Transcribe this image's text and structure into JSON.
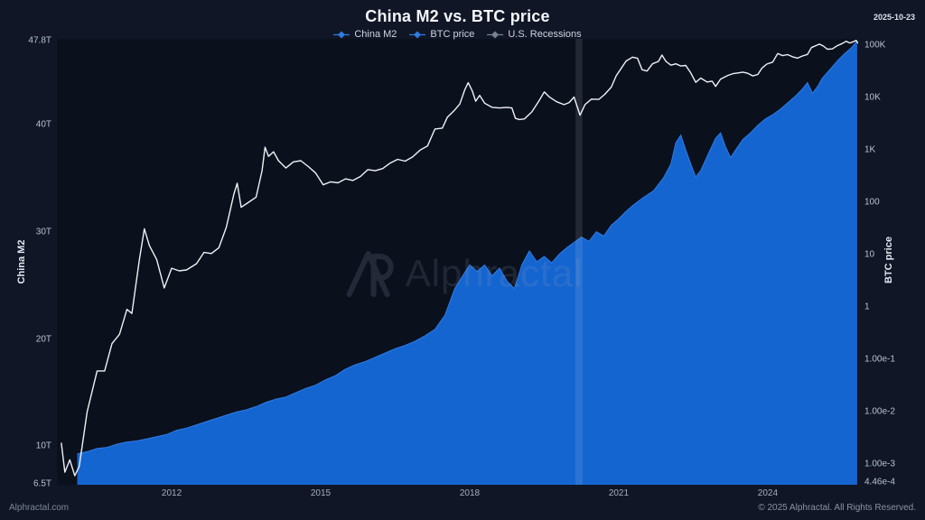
{
  "header": {
    "title": "China M2 vs. BTC price",
    "date": "2025-10-23"
  },
  "legend": [
    {
      "label": "China M2",
      "color": "#2e7ce4",
      "marker": "diamond-line"
    },
    {
      "label": "BTC price",
      "color": "#2e7ce4",
      "marker": "diamond-line"
    },
    {
      "label": "U.S. Recessions",
      "color": "#78818f",
      "marker": "diamond-line"
    }
  ],
  "watermark": {
    "logo": "AP",
    "text": "Alphractal"
  },
  "footer": {
    "left": "Alphractal.com",
    "right": "© 2025 Alphractal. All Rights Reserved."
  },
  "colors": {
    "page_bg": "#101626",
    "plot_bg": "#0b101d",
    "m2_fill": "#1565d0",
    "m2_edge": "#2e7ce4",
    "btc_line": "#eef2f7",
    "recession_band": "rgba(255,255,255,0.10)"
  },
  "chart_data": {
    "type": "area",
    "title": "China M2 vs. BTC price",
    "x_range": [
      2009.69,
      2025.82
    ],
    "x_axis": {
      "ticks": [
        2012,
        2015,
        2018,
        2021,
        2024
      ]
    },
    "left_axis": {
      "label": "China M2",
      "scale": "linear",
      "range": [
        6.5,
        47.8
      ],
      "units": "T",
      "ticks": [
        {
          "label": "6.5T",
          "value": 6.5
        },
        {
          "label": "10T",
          "value": 10
        },
        {
          "label": "20T",
          "value": 20
        },
        {
          "label": "30T",
          "value": 30
        },
        {
          "label": "40T",
          "value": 40
        },
        {
          "label": "47.8T",
          "value": 47.8
        }
      ]
    },
    "right_axis": {
      "label": "BTC price",
      "scale": "log",
      "range": [
        0.000446,
        130000
      ],
      "ticks": [
        {
          "label": "100K",
          "value": 100000
        },
        {
          "label": "10K",
          "value": 10000
        },
        {
          "label": "1K",
          "value": 1000
        },
        {
          "label": "100",
          "value": 100
        },
        {
          "label": "10",
          "value": 10
        },
        {
          "label": "1",
          "value": 1
        },
        {
          "label": "1.00e-1",
          "value": 0.1
        },
        {
          "label": "1.00e-2",
          "value": 0.01
        },
        {
          "label": "1.00e-3",
          "value": 0.001
        },
        {
          "label": "4.46e-4",
          "value": 0.000446
        }
      ]
    },
    "series": [
      {
        "name": "China M2",
        "type": "area",
        "axis": "left",
        "points": [
          [
            2010.1,
            9.3
          ],
          [
            2010.3,
            9.5
          ],
          [
            2010.5,
            9.8
          ],
          [
            2010.7,
            9.9
          ],
          [
            2010.9,
            10.2
          ],
          [
            2011.1,
            10.4
          ],
          [
            2011.3,
            10.5
          ],
          [
            2011.5,
            10.7
          ],
          [
            2011.7,
            10.9
          ],
          [
            2011.9,
            11.1
          ],
          [
            2012.1,
            11.5
          ],
          [
            2012.3,
            11.7
          ],
          [
            2012.5,
            12.0
          ],
          [
            2012.7,
            12.3
          ],
          [
            2012.9,
            12.6
          ],
          [
            2013.1,
            12.9
          ],
          [
            2013.3,
            13.2
          ],
          [
            2013.5,
            13.4
          ],
          [
            2013.7,
            13.7
          ],
          [
            2013.9,
            14.1
          ],
          [
            2014.1,
            14.4
          ],
          [
            2014.3,
            14.6
          ],
          [
            2014.5,
            15.0
          ],
          [
            2014.7,
            15.4
          ],
          [
            2014.9,
            15.7
          ],
          [
            2015.1,
            16.2
          ],
          [
            2015.3,
            16.6
          ],
          [
            2015.5,
            17.2
          ],
          [
            2015.7,
            17.6
          ],
          [
            2015.9,
            17.9
          ],
          [
            2016.1,
            18.3
          ],
          [
            2016.3,
            18.7
          ],
          [
            2016.5,
            19.1
          ],
          [
            2016.7,
            19.4
          ],
          [
            2016.9,
            19.8
          ],
          [
            2017.1,
            20.3
          ],
          [
            2017.3,
            20.9
          ],
          [
            2017.5,
            22.2
          ],
          [
            2017.7,
            24.7
          ],
          [
            2017.9,
            26.2
          ],
          [
            2018.0,
            26.9
          ],
          [
            2018.15,
            26.3
          ],
          [
            2018.3,
            26.9
          ],
          [
            2018.45,
            25.9
          ],
          [
            2018.6,
            26.6
          ],
          [
            2018.75,
            25.4
          ],
          [
            2018.9,
            24.7
          ],
          [
            2019.05,
            26.9
          ],
          [
            2019.2,
            28.2
          ],
          [
            2019.35,
            27.2
          ],
          [
            2019.5,
            27.7
          ],
          [
            2019.65,
            27.1
          ],
          [
            2019.8,
            27.9
          ],
          [
            2019.95,
            28.5
          ],
          [
            2020.1,
            29.0
          ],
          [
            2020.25,
            29.5
          ],
          [
            2020.4,
            29.1
          ],
          [
            2020.55,
            30.0
          ],
          [
            2020.7,
            29.6
          ],
          [
            2020.85,
            30.6
          ],
          [
            2021.0,
            31.2
          ],
          [
            2021.15,
            31.9
          ],
          [
            2021.3,
            32.5
          ],
          [
            2021.5,
            33.2
          ],
          [
            2021.7,
            33.8
          ],
          [
            2021.9,
            35.0
          ],
          [
            2022.05,
            36.3
          ],
          [
            2022.15,
            38.3
          ],
          [
            2022.25,
            39.0
          ],
          [
            2022.35,
            37.6
          ],
          [
            2022.45,
            36.3
          ],
          [
            2022.55,
            35.1
          ],
          [
            2022.65,
            35.7
          ],
          [
            2022.8,
            37.2
          ],
          [
            2022.95,
            38.7
          ],
          [
            2023.05,
            39.2
          ],
          [
            2023.15,
            37.9
          ],
          [
            2023.25,
            36.9
          ],
          [
            2023.35,
            37.6
          ],
          [
            2023.5,
            38.6
          ],
          [
            2023.65,
            39.2
          ],
          [
            2023.8,
            39.9
          ],
          [
            2023.95,
            40.5
          ],
          [
            2024.1,
            40.9
          ],
          [
            2024.25,
            41.4
          ],
          [
            2024.4,
            42.0
          ],
          [
            2024.55,
            42.6
          ],
          [
            2024.7,
            43.3
          ],
          [
            2024.8,
            43.9
          ],
          [
            2024.9,
            42.9
          ],
          [
            2025.0,
            43.5
          ],
          [
            2025.1,
            44.3
          ],
          [
            2025.25,
            45.1
          ],
          [
            2025.4,
            45.9
          ],
          [
            2025.55,
            46.6
          ],
          [
            2025.7,
            47.2
          ],
          [
            2025.8,
            47.8
          ]
        ]
      },
      {
        "name": "BTC price",
        "type": "line",
        "axis": "right",
        "points": [
          [
            2009.78,
            0.0025
          ],
          [
            2009.85,
            0.0007
          ],
          [
            2009.95,
            0.0012
          ],
          [
            2010.05,
            0.0006
          ],
          [
            2010.14,
            0.0009
          ],
          [
            2010.3,
            0.01
          ],
          [
            2010.5,
            0.06
          ],
          [
            2010.65,
            0.06
          ],
          [
            2010.8,
            0.2
          ],
          [
            2010.95,
            0.3
          ],
          [
            2011.1,
            0.9
          ],
          [
            2011.2,
            0.75
          ],
          [
            2011.35,
            8
          ],
          [
            2011.45,
            31
          ],
          [
            2011.55,
            15
          ],
          [
            2011.7,
            8
          ],
          [
            2011.85,
            2.3
          ],
          [
            2012.0,
            5.5
          ],
          [
            2012.15,
            4.9
          ],
          [
            2012.3,
            5.1
          ],
          [
            2012.5,
            6.7
          ],
          [
            2012.65,
            11
          ],
          [
            2012.8,
            10.5
          ],
          [
            2012.95,
            13.5
          ],
          [
            2013.1,
            33
          ],
          [
            2013.25,
            140
          ],
          [
            2013.32,
            230
          ],
          [
            2013.4,
            80
          ],
          [
            2013.55,
            100
          ],
          [
            2013.7,
            125
          ],
          [
            2013.82,
            400
          ],
          [
            2013.88,
            1120
          ],
          [
            2013.95,
            750
          ],
          [
            2014.05,
            920
          ],
          [
            2014.15,
            620
          ],
          [
            2014.3,
            450
          ],
          [
            2014.45,
            590
          ],
          [
            2014.6,
            620
          ],
          [
            2014.75,
            480
          ],
          [
            2014.9,
            360
          ],
          [
            2015.05,
            215
          ],
          [
            2015.2,
            245
          ],
          [
            2015.35,
            235
          ],
          [
            2015.5,
            280
          ],
          [
            2015.65,
            260
          ],
          [
            2015.8,
            310
          ],
          [
            2015.95,
            420
          ],
          [
            2016.1,
            400
          ],
          [
            2016.25,
            440
          ],
          [
            2016.4,
            560
          ],
          [
            2016.55,
            660
          ],
          [
            2016.7,
            610
          ],
          [
            2016.85,
            730
          ],
          [
            2017.0,
            990
          ],
          [
            2017.15,
            1180
          ],
          [
            2017.3,
            2500
          ],
          [
            2017.45,
            2600
          ],
          [
            2017.55,
            4200
          ],
          [
            2017.7,
            5800
          ],
          [
            2017.8,
            7500
          ],
          [
            2017.9,
            14000
          ],
          [
            2017.97,
            19200
          ],
          [
            2018.05,
            13500
          ],
          [
            2018.12,
            8500
          ],
          [
            2018.2,
            11000
          ],
          [
            2018.3,
            7800
          ],
          [
            2018.45,
            6500
          ],
          [
            2018.6,
            6300
          ],
          [
            2018.75,
            6500
          ],
          [
            2018.85,
            6300
          ],
          [
            2018.92,
            4000
          ],
          [
            2019.0,
            3800
          ],
          [
            2019.1,
            3900
          ],
          [
            2019.25,
            5300
          ],
          [
            2019.4,
            8800
          ],
          [
            2019.5,
            12800
          ],
          [
            2019.6,
            10300
          ],
          [
            2019.75,
            8300
          ],
          [
            2019.9,
            7300
          ],
          [
            2020.0,
            8000
          ],
          [
            2020.1,
            10200
          ],
          [
            2020.22,
            4600
          ],
          [
            2020.32,
            7300
          ],
          [
            2020.45,
            9300
          ],
          [
            2020.6,
            9200
          ],
          [
            2020.72,
            11500
          ],
          [
            2020.85,
            15800
          ],
          [
            2020.95,
            26000
          ],
          [
            2021.05,
            36000
          ],
          [
            2021.15,
            50000
          ],
          [
            2021.28,
            59000
          ],
          [
            2021.38,
            56000
          ],
          [
            2021.47,
            34000
          ],
          [
            2021.57,
            32000
          ],
          [
            2021.68,
            44000
          ],
          [
            2021.8,
            49000
          ],
          [
            2021.87,
            64500
          ],
          [
            2021.95,
            49000
          ],
          [
            2022.05,
            41500
          ],
          [
            2022.15,
            44000
          ],
          [
            2022.25,
            40000
          ],
          [
            2022.35,
            41000
          ],
          [
            2022.45,
            29500
          ],
          [
            2022.55,
            19500
          ],
          [
            2022.65,
            23500
          ],
          [
            2022.78,
            19800
          ],
          [
            2022.88,
            20500
          ],
          [
            2022.95,
            16300
          ],
          [
            2023.05,
            22500
          ],
          [
            2023.2,
            26500
          ],
          [
            2023.3,
            28500
          ],
          [
            2023.4,
            29500
          ],
          [
            2023.5,
            30500
          ],
          [
            2023.6,
            29000
          ],
          [
            2023.7,
            25800
          ],
          [
            2023.8,
            27500
          ],
          [
            2023.88,
            36000
          ],
          [
            2023.98,
            43500
          ],
          [
            2024.1,
            47500
          ],
          [
            2024.2,
            69000
          ],
          [
            2024.3,
            63000
          ],
          [
            2024.4,
            66000
          ],
          [
            2024.5,
            60000
          ],
          [
            2024.6,
            56500
          ],
          [
            2024.7,
            62000
          ],
          [
            2024.8,
            66500
          ],
          [
            2024.88,
            90000
          ],
          [
            2024.97,
            98000
          ],
          [
            2025.04,
            104500
          ],
          [
            2025.12,
            96000
          ],
          [
            2025.2,
            83500
          ],
          [
            2025.3,
            84500
          ],
          [
            2025.4,
            97500
          ],
          [
            2025.5,
            107500
          ],
          [
            2025.58,
            118500
          ],
          [
            2025.65,
            110000
          ],
          [
            2025.72,
            116000
          ],
          [
            2025.78,
            123500
          ],
          [
            2025.81,
            110500
          ]
        ]
      },
      {
        "name": "U.S. Recessions",
        "type": "band",
        "intervals": [
          [
            2020.13,
            2020.27
          ]
        ]
      }
    ]
  }
}
